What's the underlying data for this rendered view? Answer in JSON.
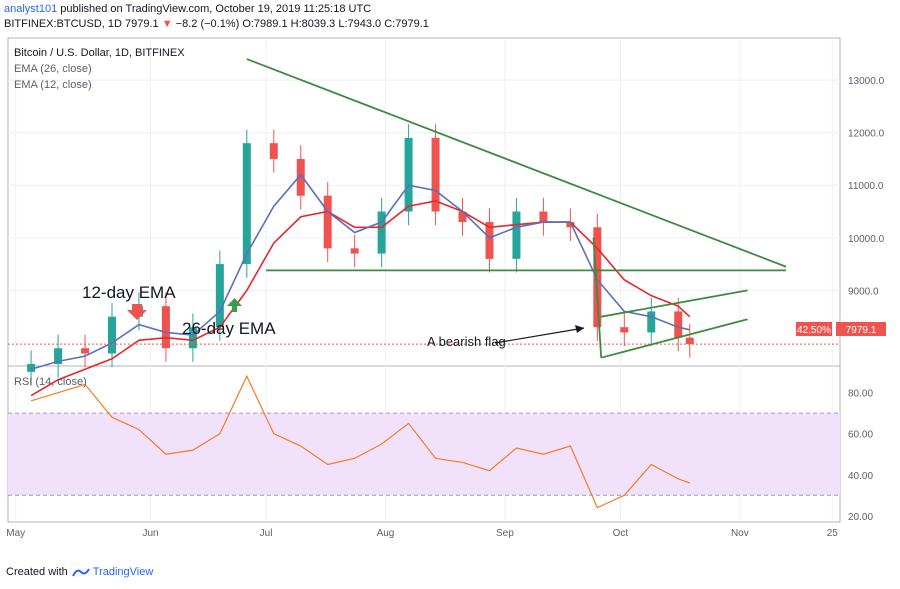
{
  "header": {
    "author": "analyst101",
    "published_text": " published on TradingView.com, October 19, 2019 11:25:18 UTC",
    "symbol_line_a": "BITFINEX:BTCUSD, 1D 7979.1 ",
    "change_arrow": "▼",
    "change_text": "−8.2 (−0.1%)",
    "ohlc_text": " O:7989.1 H:8039.3 L:7943.0 C:7979.1"
  },
  "legend": {
    "title": "Bitcoin / U.S. Dollar, 1D, BITFINEX",
    "ema26": "EMA (26, close)",
    "ema12": "EMA (12, close)",
    "rsi": "RSI (14, close)"
  },
  "annotations": {
    "ema12_label": "12-day EMA",
    "ema26_label": "26-day EMA",
    "flag_label": "A bearish flag"
  },
  "price_badge": {
    "percent": "42.50%",
    "price": "7979.1"
  },
  "footer": {
    "created_with": "Created with",
    "brand": "TradingView"
  },
  "colors": {
    "up_candle": "#26a69a",
    "down_candle": "#ef5350",
    "ema12": "#5b6fbf",
    "ema26": "#e8262c",
    "trendline": "#3d8b3d",
    "rsi_line": "#f57c1f",
    "rsi_band": "#f1e1fb",
    "annotation_arrow": "#3d9b4f"
  },
  "chart_data": [
    {
      "type": "candlestick",
      "title": "Bitcoin / U.S. Dollar, 1D, BITFINEX",
      "x": [
        "2019-05-01",
        "2019-05-08",
        "2019-05-15",
        "2019-05-22",
        "2019-05-29",
        "2019-06-05",
        "2019-06-12",
        "2019-06-19",
        "2019-06-26",
        "2019-07-03",
        "2019-07-10",
        "2019-07-17",
        "2019-07-24",
        "2019-07-31",
        "2019-08-07",
        "2019-08-14",
        "2019-08-21",
        "2019-08-28",
        "2019-09-04",
        "2019-09-11",
        "2019-09-18",
        "2019-09-25",
        "2019-10-02",
        "2019-10-09",
        "2019-10-16",
        "2019-10-19"
      ],
      "close": [
        7600,
        7900,
        7800,
        8500,
        8700,
        7900,
        8300,
        9500,
        11800,
        11500,
        10800,
        9800,
        9700,
        10500,
        11900,
        10500,
        10300,
        9600,
        10500,
        10300,
        10200,
        8300,
        8200,
        8600,
        8100,
        7979
      ],
      "ema12": [
        7500,
        7650,
        7750,
        8000,
        8350,
        8200,
        8150,
        8600,
        9700,
        10600,
        11200,
        10500,
        10100,
        10300,
        11000,
        10900,
        10500,
        10000,
        10200,
        10300,
        10300,
        9200,
        8600,
        8500,
        8300,
        8250
      ],
      "ema26": [
        7000,
        7300,
        7500,
        7700,
        8050,
        8100,
        8050,
        8300,
        9000,
        9900,
        10400,
        10500,
        10200,
        10200,
        10600,
        10700,
        10500,
        10200,
        10250,
        10300,
        10300,
        9800,
        9200,
        8900,
        8700,
        8500
      ],
      "ylim": [
        7600,
        13800
      ],
      "yticks": [
        "13000.0",
        "12000.0",
        "11000.0",
        "10000.0",
        "9000.0"
      ],
      "xticks": [
        "May",
        "Jun",
        "Jul",
        "Aug",
        "Sep",
        "Oct",
        "Nov",
        "25"
      ],
      "current_price": 7979.1,
      "trendlines": [
        {
          "name": "descending",
          "from": [
            "2019-06-26",
            13400
          ],
          "to": [
            "2019-11-13",
            9450
          ]
        },
        {
          "name": "support",
          "from": [
            "2019-07-01",
            9380
          ],
          "to": [
            "2019-11-13",
            9380
          ]
        },
        {
          "name": "flag_upper",
          "from": [
            "2019-09-26",
            8500
          ],
          "to": [
            "2019-11-03",
            9000
          ]
        },
        {
          "name": "flag_lower",
          "from": [
            "2019-09-26",
            7720
          ],
          "to": [
            "2019-11-03",
            8450
          ]
        },
        {
          "name": "drop",
          "from": [
            "2019-09-24",
            10000
          ],
          "to": [
            "2019-09-26",
            7720
          ]
        }
      ]
    },
    {
      "type": "line",
      "title": "RSI (14, close)",
      "x": [
        "2019-05-01",
        "2019-05-08",
        "2019-05-15",
        "2019-05-22",
        "2019-05-29",
        "2019-06-05",
        "2019-06-12",
        "2019-06-19",
        "2019-06-26",
        "2019-07-03",
        "2019-07-10",
        "2019-07-17",
        "2019-07-24",
        "2019-07-31",
        "2019-08-07",
        "2019-08-14",
        "2019-08-21",
        "2019-08-28",
        "2019-09-04",
        "2019-09-11",
        "2019-09-18",
        "2019-09-25",
        "2019-10-02",
        "2019-10-09",
        "2019-10-16",
        "2019-10-19"
      ],
      "values": [
        76,
        80,
        84,
        68,
        62,
        50,
        52,
        60,
        88,
        60,
        54,
        45,
        48,
        55,
        65,
        48,
        46,
        42,
        53,
        50,
        54,
        24,
        30,
        45,
        38,
        36
      ],
      "ylim": [
        17,
        92
      ],
      "yticks": [
        "80.00",
        "60.00",
        "40.00",
        "20.00"
      ],
      "bands": [
        30,
        70
      ]
    }
  ]
}
